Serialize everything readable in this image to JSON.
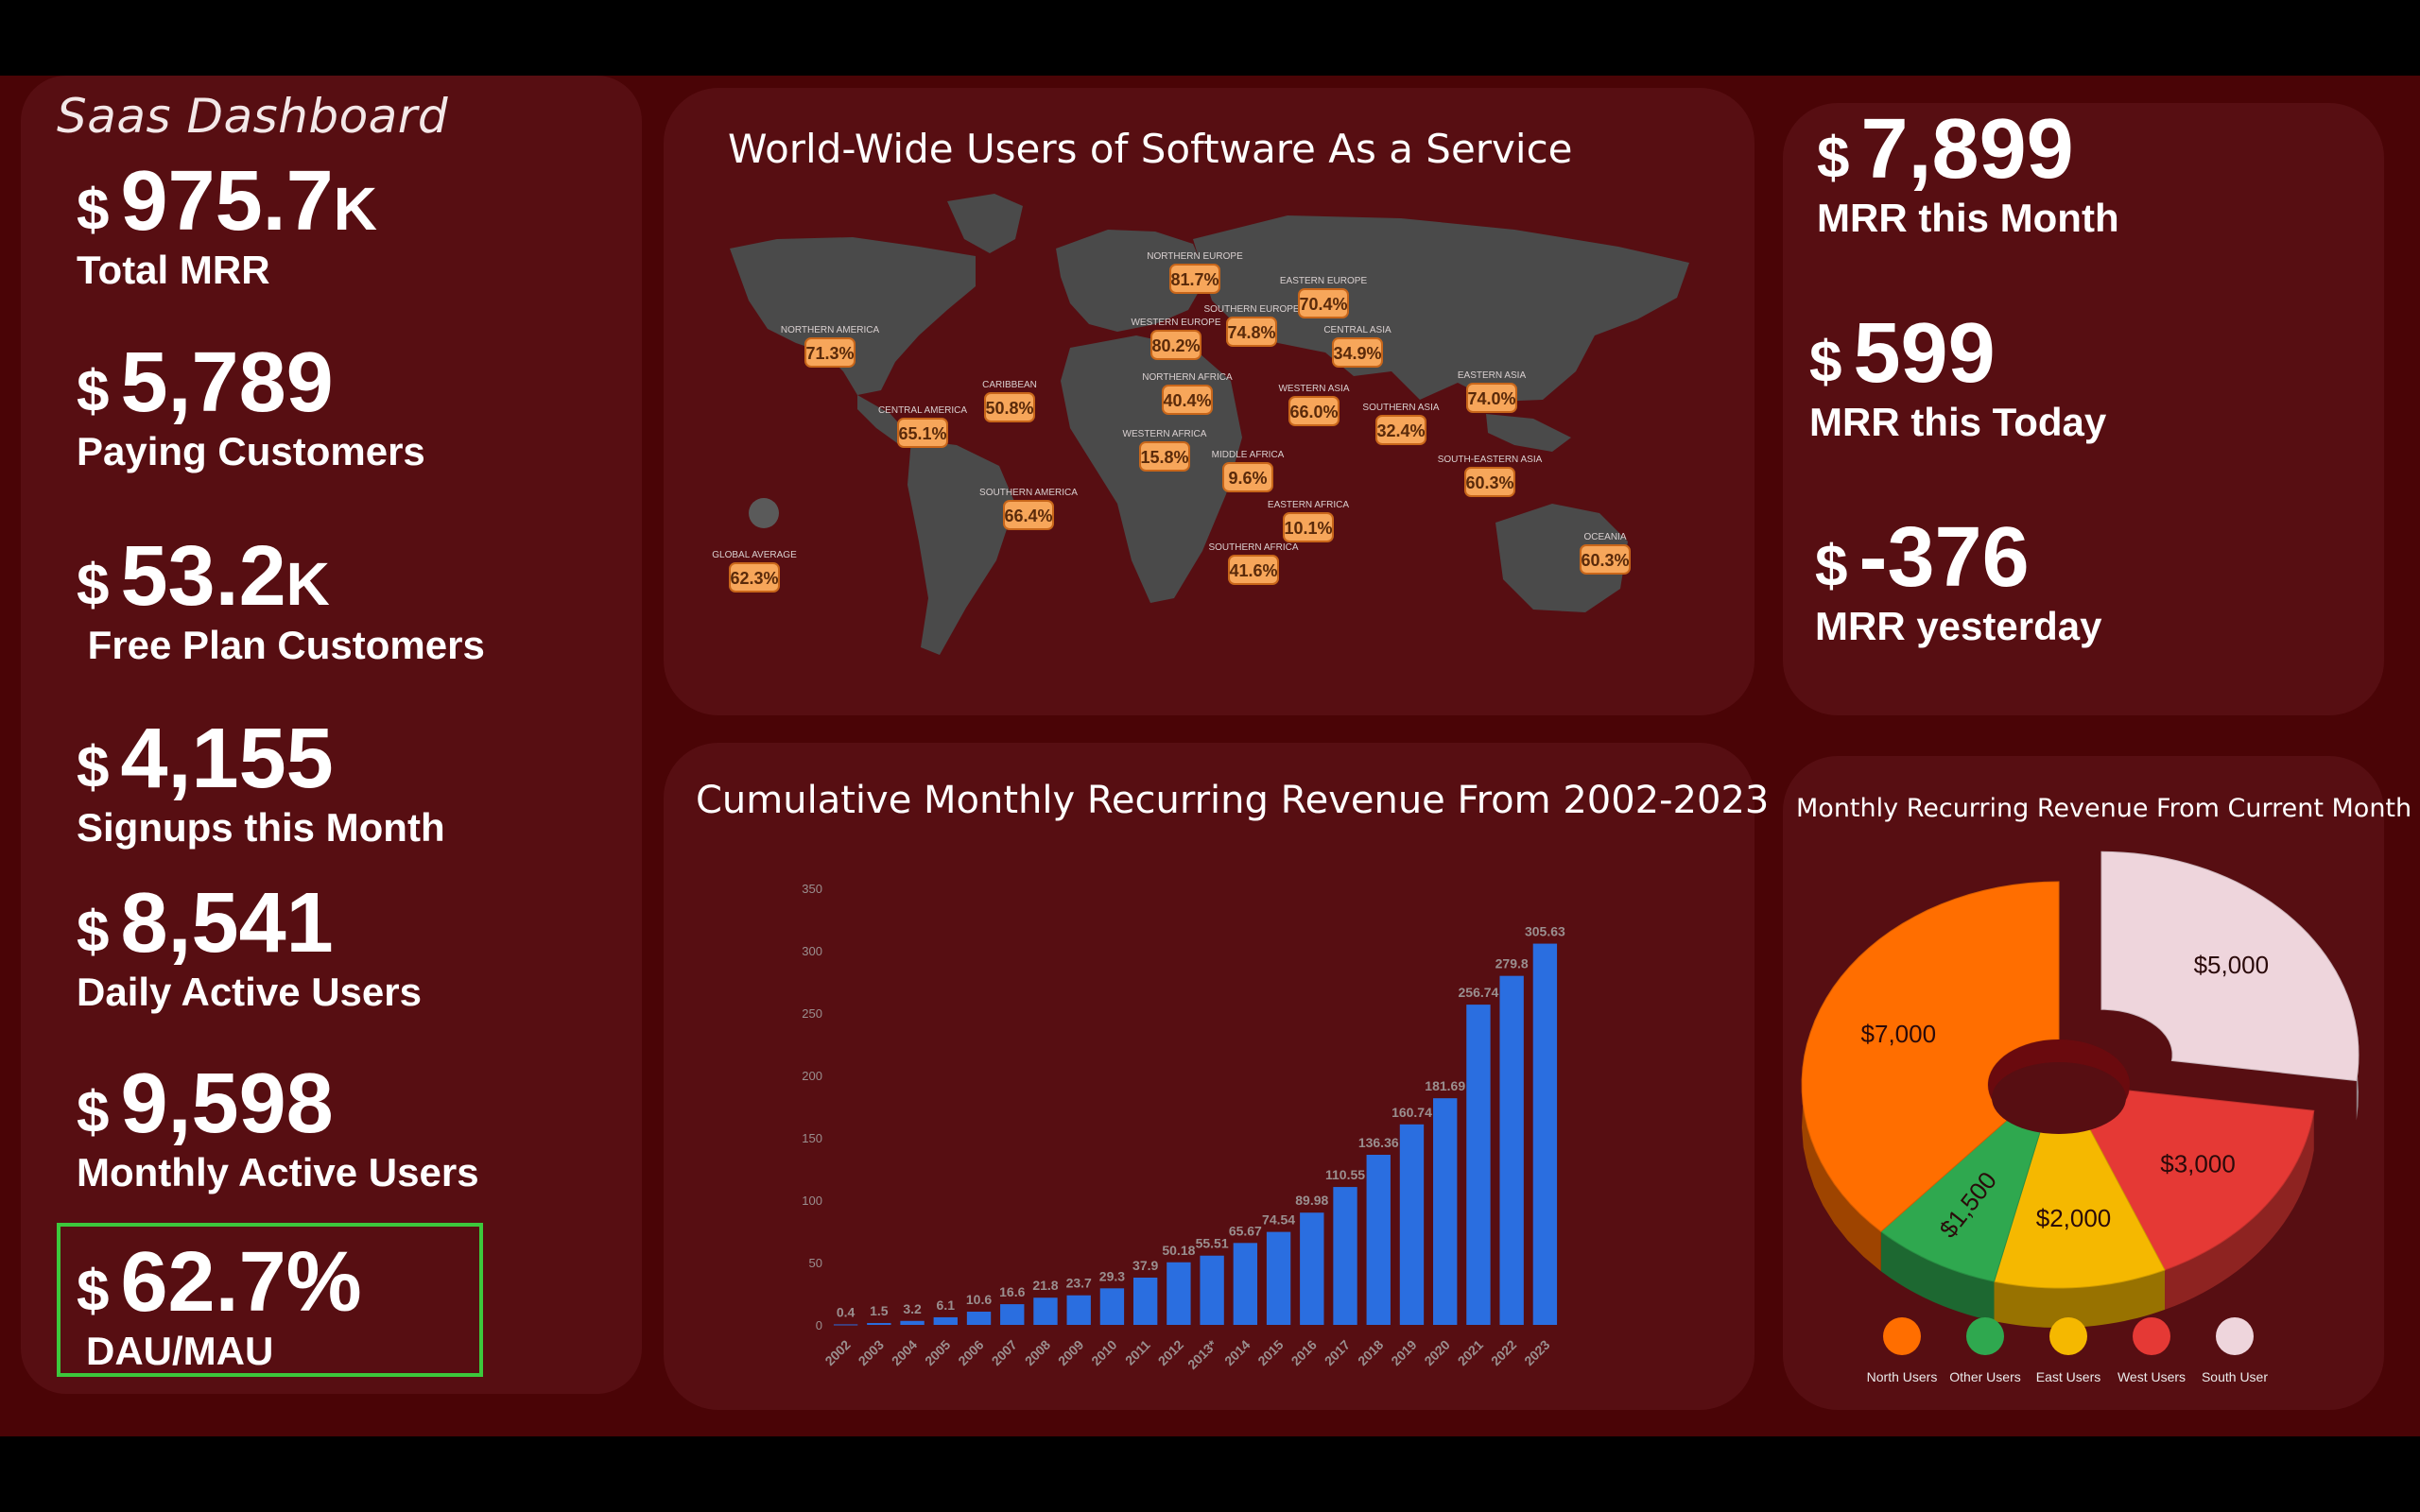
{
  "dashboard": {
    "title": "Saas Dashboard"
  },
  "kpis": [
    {
      "currency": "$",
      "value": "975.7",
      "suffix": "K",
      "label": "Total MRR"
    },
    {
      "currency": "$",
      "value": "5,789",
      "suffix": "",
      "label": "Paying Customers"
    },
    {
      "currency": "$",
      "value": "53.2",
      "suffix": "K",
      "label": " Free Plan Customers"
    },
    {
      "currency": "$",
      "value": "4,155",
      "suffix": "",
      "label": "Signups this Month"
    },
    {
      "currency": "$",
      "value": "8,541",
      "suffix": "",
      "label": "Daily Active Users"
    },
    {
      "currency": "$",
      "value": "9,598",
      "suffix": "",
      "label": "Monthly Active Users"
    },
    {
      "currency": "$",
      "value": "62.7%",
      "suffix": "",
      "label": "DAU/MAU"
    }
  ],
  "right_stats": [
    {
      "currency": "$",
      "value": "7,899",
      "label": "MRR this Month"
    },
    {
      "currency": "$",
      "value": "599",
      "label": "MRR this Today"
    },
    {
      "currency": "$",
      "value": "-376",
      "label": "MRR yesterday"
    }
  ],
  "map": {
    "title": "World-Wide Users of Software As a Service",
    "regions": [
      {
        "region": "NORTHERN AMERICA",
        "value": "71.3%"
      },
      {
        "region": "CENTRAL AMERICA",
        "value": "65.1%"
      },
      {
        "region": "CARIBBEAN",
        "value": "50.8%"
      },
      {
        "region": "SOUTHERN AMERICA",
        "value": "66.4%"
      },
      {
        "region": "GLOBAL AVERAGE",
        "value": "62.3%"
      },
      {
        "region": "NORTHERN EUROPE",
        "value": "81.7%"
      },
      {
        "region": "WESTERN EUROPE",
        "value": "80.2%"
      },
      {
        "region": "SOUTHERN EUROPE",
        "value": "74.8%"
      },
      {
        "region": "EASTERN EUROPE",
        "value": "70.4%"
      },
      {
        "region": "NORTHERN AFRICA",
        "value": "40.4%"
      },
      {
        "region": "WESTERN AFRICA",
        "value": "15.8%"
      },
      {
        "region": "MIDDLE AFRICA",
        "value": "9.6%"
      },
      {
        "region": "WESTERN ASIA",
        "value": "66.0%"
      },
      {
        "region": "EASTERN AFRICA",
        "value": "10.1%"
      },
      {
        "region": "SOUTHERN AFRICA",
        "value": "41.6%"
      },
      {
        "region": "CENTRAL ASIA",
        "value": "34.9%"
      },
      {
        "region": "SOUTHERN ASIA",
        "value": "32.4%"
      },
      {
        "region": "EASTERN ASIA",
        "value": "74.0%"
      },
      {
        "region": "SOUTH-EASTERN ASIA",
        "value": "60.3%"
      },
      {
        "region": "OCEANIA",
        "value": "60.3%"
      }
    ]
  },
  "chart_data": [
    {
      "type": "bar",
      "title": "Cumulative  Monthly Recurring Revenue From 2002-2023",
      "categories": [
        "2002",
        "2003",
        "2004",
        "2005",
        "2006",
        "2007",
        "2008",
        "2009",
        "2010",
        "2011",
        "2012",
        "2013*",
        "2014",
        "2015",
        "2016",
        "2017",
        "2018",
        "2019",
        "2020",
        "2021",
        "2022",
        "2023"
      ],
      "values": [
        0.4,
        1.5,
        3.2,
        6.1,
        10.6,
        16.6,
        21.8,
        23.7,
        29.3,
        37.9,
        50.18,
        55.51,
        65.67,
        74.54,
        89.98,
        110.55,
        136.36,
        160.74,
        181.69,
        256.74,
        279.8,
        305.63
      ],
      "value_labels": [
        "0.4",
        "1.5",
        "3.2",
        "6.1",
        "10.6",
        "16.6",
        "21.8",
        "23.7",
        "29.3",
        "37.9",
        "50.18",
        "55.51",
        "65.67",
        "74.54",
        "89.98",
        "110.55",
        "136.36",
        "160.74",
        "181.69",
        "256.74",
        "279.8",
        "305.63"
      ],
      "yticks": [
        "0",
        "50",
        "100",
        "150",
        "200",
        "250",
        "300",
        "350"
      ],
      "ylim": [
        0,
        350
      ],
      "xlabel": "",
      "ylabel": "",
      "grid": false,
      "bar_color": "#2a6ee0"
    },
    {
      "type": "pie",
      "title": "Monthly Recurring Revenue From Current Month",
      "labels": [
        "North Users",
        "Other Users",
        "East Users",
        "West Users",
        "South User"
      ],
      "values": [
        7000,
        1500,
        2000,
        3000,
        5000
      ],
      "value_labels": [
        "$7,000",
        "$1,500",
        "$2,000",
        "$3,000",
        "$5,000"
      ],
      "colors": [
        "#ff6e00",
        "#2fa84f",
        "#f5b800",
        "#e53935",
        "#eed5dc"
      ],
      "legend": "bottom"
    }
  ]
}
